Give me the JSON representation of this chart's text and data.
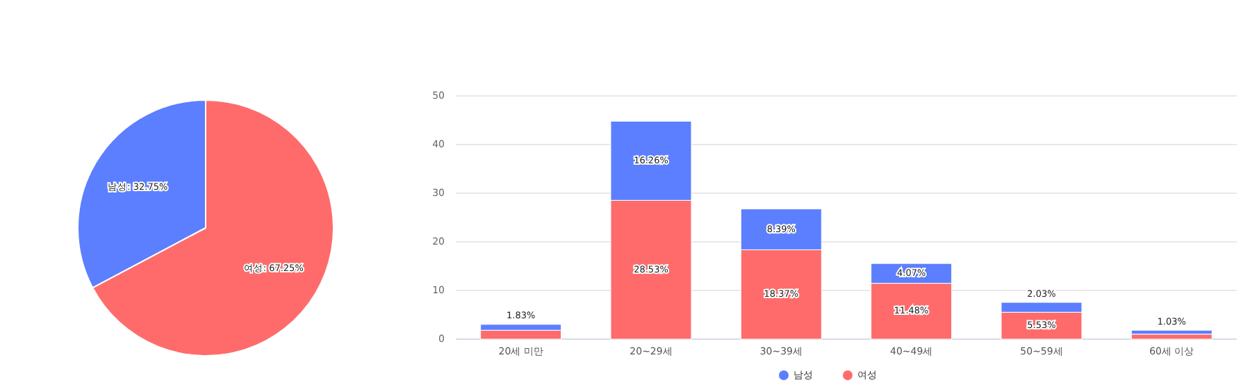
{
  "chart_data": [
    {
      "type": "pie",
      "categories": [
        "남성",
        "여성"
      ],
      "values": [
        32.75,
        67.25
      ],
      "colors": [
        "#5b7fff",
        "#ff6b6b"
      ],
      "value_labels": [
        "32.75%",
        "67.25%"
      ],
      "legend": false
    },
    {
      "type": "bar",
      "stacked": true,
      "categories": [
        "20세 미만",
        "20~29세",
        "30~39세",
        "40~49세",
        "50~59세",
        "60세 이상"
      ],
      "ylim": [
        0,
        50
      ],
      "yticks": [
        0,
        10,
        20,
        30,
        40,
        50
      ],
      "grid": "y",
      "legend": "bottom",
      "series": [
        {
          "name": "여성",
          "color": "#ff6b6b",
          "values": [
            1.83,
            28.53,
            18.37,
            11.48,
            5.53,
            1.03
          ],
          "value_labels": [
            "1.83%",
            "28.53%",
            "18.37%",
            "11.48%",
            "5.53%",
            "1.03%"
          ]
        },
        {
          "name": "남성",
          "color": "#5b7fff",
          "values": [
            1.2,
            16.26,
            8.39,
            4.07,
            2.03,
            0.8
          ],
          "value_labels": [
            null,
            "16.26%",
            "8.39%",
            "4.07%",
            "2.03%",
            null
          ]
        }
      ]
    }
  ]
}
